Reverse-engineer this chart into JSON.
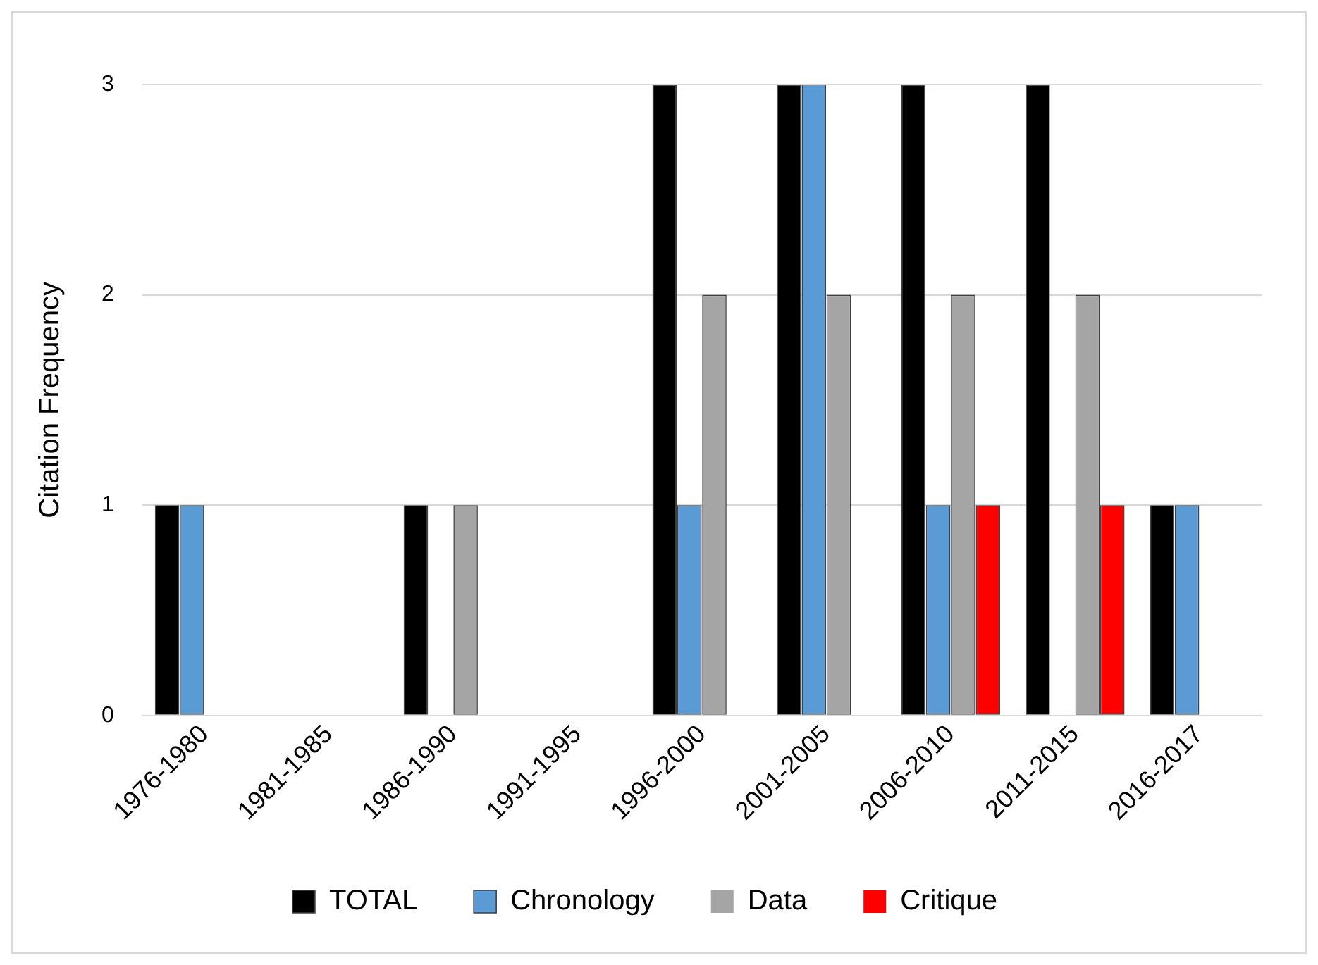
{
  "chart_data": {
    "type": "bar",
    "ylabel": "Citation Frequency",
    "categories": [
      "1976-1980",
      "1981-1985",
      "1986-1990",
      "1991-1995",
      "1996-2000",
      "2001-2005",
      "2006-2010",
      "2011-2015",
      "2016-2017"
    ],
    "series": [
      {
        "name": "TOTAL",
        "color": "#000000",
        "values": [
          1,
          0,
          1,
          0,
          3,
          3,
          3,
          3,
          1
        ]
      },
      {
        "name": "Chronology",
        "color": "#5b9bd5",
        "values": [
          1,
          0,
          0,
          0,
          1,
          3,
          1,
          0,
          1
        ]
      },
      {
        "name": "Data",
        "color": "#a5a5a5",
        "values": [
          0,
          0,
          1,
          0,
          2,
          2,
          2,
          2,
          0
        ]
      },
      {
        "name": "Critique",
        "color": "#ff0000",
        "values": [
          0,
          0,
          0,
          0,
          0,
          0,
          1,
          1,
          0
        ]
      }
    ],
    "ylim": [
      0,
      3
    ],
    "yticks": [
      0,
      1,
      2,
      3
    ],
    "grid": "y",
    "legend": "bottom"
  }
}
